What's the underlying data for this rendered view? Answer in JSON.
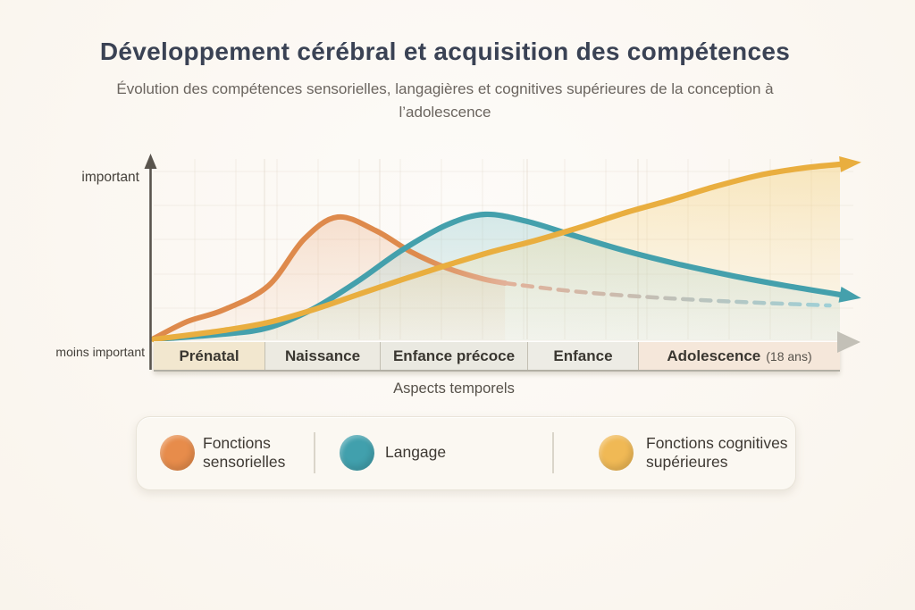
{
  "header": {
    "title": "Développement cérébral et acquisition des compétences",
    "subtitle": "Évolution des compétences sensorielles, langagières et cognitives supérieures de la conception à l’adolescence"
  },
  "axes": {
    "y_top": "important",
    "y_bottom": "moins important",
    "x_title": "Aspects temporels"
  },
  "timeline": {
    "segments": [
      {
        "label": "Prénatal",
        "suffix": "",
        "bg": "#F2E7CF"
      },
      {
        "label": "Naissance",
        "suffix": "",
        "bg": "#ECEAE1"
      },
      {
        "label": "Enfance précoce",
        "suffix": "",
        "bg": "#EAE9E1"
      },
      {
        "label": "Enfance",
        "suffix": "",
        "bg": "#EDECE5"
      },
      {
        "label": "Adolescence",
        "suffix": "(18 ans)",
        "bg": "#F5E7DA"
      }
    ]
  },
  "legend": {
    "items": [
      {
        "name": "Fonctions sensorielles",
        "lines": [
          "Fonctions",
          "sensorielles"
        ],
        "color": "#E78C4B"
      },
      {
        "name": "Langage",
        "lines": [
          "Langage"
        ],
        "color": "#41A0AD"
      },
      {
        "name": "Fonctions cognitives supérieures",
        "lines": [
          "Fonctions cognitives",
          "supérieures"
        ],
        "color": "#F0B955"
      }
    ]
  },
  "chart_data": {
    "type": "line",
    "title": "Développement cérébral et acquisition des compétences",
    "subtitle": "Évolution des compétences sensorielles, langagières et cognitives supérieures de la conception à l’adolescence",
    "xlabel": "Aspects temporels",
    "ylabel": "Importance (moins important → important)",
    "x_categories": [
      "Prénatal",
      "Naissance",
      "Enfance précoce",
      "Enfance",
      "Adolescence (18 ans)"
    ],
    "y_scale": "qualitative 0–1 (moins important → important)",
    "grid": "faint",
    "legend_position": "bottom",
    "series": [
      {
        "name": "Fonctions sensorielles",
        "color": "#DE8A4C",
        "fill_top": "rgba(229,148,92,0.38)",
        "fill_bottom": "rgba(233,175,135,0.06)",
        "line_style": "solide, s’estompe puis continue en pointillés (déclin)",
        "category_values": [
          0.08,
          0.7,
          0.4,
          0.27,
          0.2
        ],
        "points": [
          [
            0,
            0.01
          ],
          [
            0.049,
            0.106
          ],
          [
            0.102,
            0.172
          ],
          [
            0.167,
            0.308
          ],
          [
            0.219,
            0.571
          ],
          [
            0.268,
            0.697
          ],
          [
            0.323,
            0.621
          ],
          [
            0.375,
            0.5
          ],
          [
            0.427,
            0.409
          ],
          [
            0.479,
            0.348
          ],
          [
            0.512,
            0.323
          ]
        ],
        "dashed_tail": [
          [
            0.512,
            0.323
          ],
          [
            0.622,
            0.273
          ],
          [
            0.753,
            0.237
          ],
          [
            0.883,
            0.212
          ],
          [
            0.985,
            0.197
          ]
        ],
        "dash_fade_from": "#E2B199",
        "dash_fade_to": "#9ED0D7"
      },
      {
        "name": "Langage",
        "color": "#44A0AC",
        "fill_top": "rgba(122,190,197,0.42)",
        "fill_bottom": "rgba(150,205,208,0.10)",
        "line_style": "solide, flèche vers la droite",
        "category_values": [
          0.02,
          0.2,
          0.7,
          0.55,
          0.33
        ],
        "arrow": true,
        "points": [
          [
            0,
            0.005
          ],
          [
            0.102,
            0.035
          ],
          [
            0.167,
            0.071
          ],
          [
            0.232,
            0.177
          ],
          [
            0.297,
            0.333
          ],
          [
            0.362,
            0.51
          ],
          [
            0.427,
            0.652
          ],
          [
            0.483,
            0.712
          ],
          [
            0.544,
            0.672
          ],
          [
            0.609,
            0.596
          ],
          [
            0.688,
            0.505
          ],
          [
            0.766,
            0.429
          ],
          [
            0.844,
            0.364
          ],
          [
            0.922,
            0.308
          ],
          [
            1.0,
            0.258
          ]
        ]
      },
      {
        "name": "Fonctions cognitives supérieures",
        "color": "#E9AE3F",
        "fill_top": "rgba(242,198,94,0.36)",
        "fill_bottom": "rgba(245,215,140,0.05)",
        "line_style": "solide, flèche montante",
        "category_values": [
          0.03,
          0.13,
          0.45,
          0.64,
          0.93
        ],
        "arrow": true,
        "points": [
          [
            0,
            0.005
          ],
          [
            0.102,
            0.056
          ],
          [
            0.167,
            0.101
          ],
          [
            0.232,
            0.172
          ],
          [
            0.297,
            0.258
          ],
          [
            0.362,
            0.343
          ],
          [
            0.427,
            0.424
          ],
          [
            0.492,
            0.5
          ],
          [
            0.557,
            0.565
          ],
          [
            0.622,
            0.64
          ],
          [
            0.688,
            0.722
          ],
          [
            0.753,
            0.793
          ],
          [
            0.818,
            0.869
          ],
          [
            0.883,
            0.934
          ],
          [
            0.948,
            0.975
          ],
          [
            1.0,
            0.995
          ]
        ]
      }
    ]
  }
}
